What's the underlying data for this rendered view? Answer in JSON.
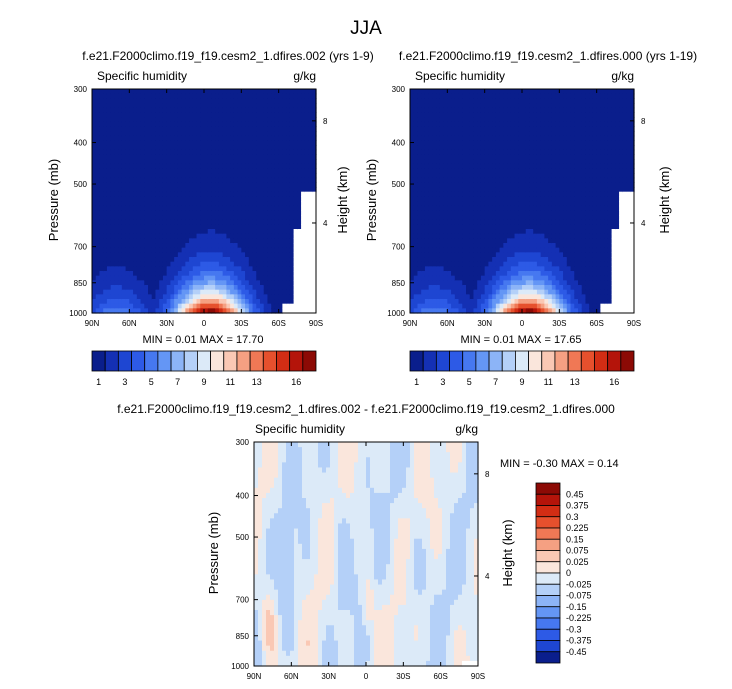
{
  "figure": {
    "title": "JJA"
  },
  "chart_data": [
    {
      "type": "heatmap",
      "title": "f.e21.F2000climo.f19_f19.cesm2_1.dfires.002 (yrs 1-9)",
      "left_title": "Specific humidity",
      "right_title": "g/kg",
      "ylabel": "Pressure (mb)",
      "y2label": "Height (km)",
      "xticks": [
        "90N",
        "60N",
        "30N",
        "0",
        "30S",
        "60S",
        "90S"
      ],
      "yticks": [
        "300",
        "400",
        "500",
        "700",
        "850",
        "1000"
      ],
      "y2ticks": [
        "8",
        "4"
      ],
      "x_range": [
        90,
        -90
      ],
      "y_range_mb": [
        300,
        1000
      ],
      "stats": "MIN =  0.01   MAX =  17.70",
      "min": 0.01,
      "max": 17.7,
      "colorbar_labels": [
        "1",
        "3",
        "5",
        "7",
        "9",
        "11",
        "13",
        "16"
      ]
    },
    {
      "type": "heatmap",
      "title": "f.e21.F2000climo.f19_f19.cesm2_1.dfires.000 (yrs 1-19)",
      "left_title": "Specific humidity",
      "right_title": "g/kg",
      "ylabel": "Pressure (mb)",
      "y2label": "Height (km)",
      "xticks": [
        "90N",
        "60N",
        "30N",
        "0",
        "30S",
        "60S",
        "90S"
      ],
      "yticks": [
        "300",
        "400",
        "500",
        "700",
        "850",
        "1000"
      ],
      "y2ticks": [
        "8",
        "4"
      ],
      "x_range": [
        90,
        -90
      ],
      "y_range_mb": [
        300,
        1000
      ],
      "stats": "MIN =  0.01   MAX =  17.65",
      "min": 0.01,
      "max": 17.65,
      "colorbar_labels": [
        "1",
        "3",
        "5",
        "7",
        "9",
        "11",
        "13",
        "16"
      ]
    },
    {
      "type": "heatmap",
      "title": "f.e21.F2000climo.f19_f19.cesm2_1.dfires.002 - f.e21.F2000climo.f19_f19.cesm2_1.dfires.000",
      "left_title": "Specific humidity",
      "right_title": "g/kg",
      "ylabel": "Pressure (mb)",
      "y2label": "Height (km)",
      "xticks": [
        "90N",
        "60N",
        "30N",
        "0",
        "30S",
        "60S",
        "90S"
      ],
      "yticks": [
        "300",
        "400",
        "500",
        "700",
        "850",
        "1000"
      ],
      "y2ticks": [
        "8",
        "4"
      ],
      "x_range": [
        90,
        -90
      ],
      "y_range_mb": [
        300,
        1000
      ],
      "stats": "MIN = -0.30   MAX =  0.14",
      "min": -0.3,
      "max": 0.14,
      "colorbar_labels": [
        "0.45",
        "0.375",
        "0.3",
        "0.225",
        "0.15",
        "0.075",
        "0.025",
        "0",
        "-0.025",
        "-0.075",
        "-0.15",
        "-0.225",
        "-0.3",
        "-0.375",
        "-0.45"
      ]
    }
  ],
  "colors": {
    "abs": [
      "#0a1e8c",
      "#1430b4",
      "#1e46d2",
      "#2d5ae6",
      "#4678f0",
      "#6496f5",
      "#8cb4f7",
      "#b4d0f8",
      "#dceaf8",
      "#fae6dc",
      "#fac8b4",
      "#f5a082",
      "#f07855",
      "#e6502d",
      "#d22d14",
      "#b4140a",
      "#8c0a05"
    ],
    "diff": [
      "#8c0a05",
      "#b4140a",
      "#d22d14",
      "#e6502d",
      "#f07855",
      "#f5a082",
      "#fac8b4",
      "#fae6dc",
      "#dceaf8",
      "#b4d0f8",
      "#8cb4f7",
      "#6496f5",
      "#4678f0",
      "#2d5ae6",
      "#1e46d2",
      "#0a1e8c"
    ]
  }
}
